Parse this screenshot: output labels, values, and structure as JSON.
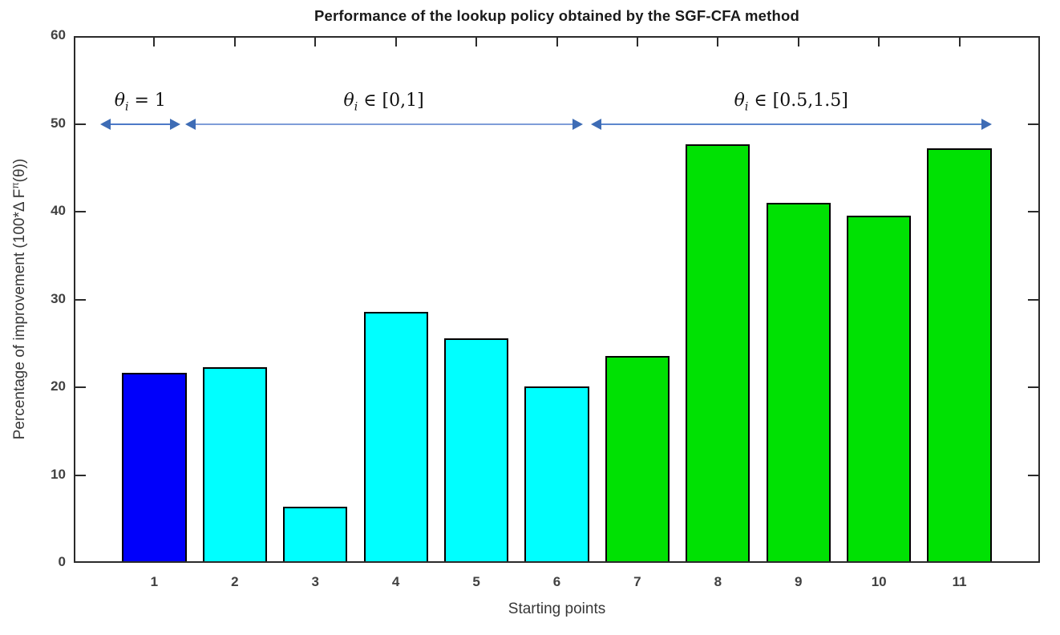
{
  "chart_data": {
    "type": "bar",
    "title": "Performance of the lookup policy obtained by the SGF-CFA method",
    "xlabel": "Starting points",
    "ylabel": {
      "prefix": "Percentage of improvement (100*Δ F",
      "superscript": "π",
      "suffix": "(θ))"
    },
    "categories": [
      "1",
      "2",
      "3",
      "4",
      "5",
      "6",
      "7",
      "8",
      "9",
      "10",
      "11"
    ],
    "values": [
      21.5,
      22.1,
      6.2,
      28.4,
      25.4,
      19.9,
      23.4,
      47.5,
      40.8,
      39.4,
      47.0
    ],
    "bar_colors": [
      "#0000fb",
      "#00ffff",
      "#00ffff",
      "#00ffff",
      "#00ffff",
      "#00ffff",
      "#00e103",
      "#00e103",
      "#00e103",
      "#00e103",
      "#00e103"
    ],
    "bar_groups": [
      {
        "label": "theta_i = 1",
        "bar_indices": [
          1
        ],
        "color": "#0000fb"
      },
      {
        "label": "theta_i in [0,1]",
        "bar_indices": [
          2,
          3,
          4,
          5,
          6
        ],
        "color": "#00ffff"
      },
      {
        "label": "theta_i in [0.5,1.5]",
        "bar_indices": [
          7,
          8,
          9,
          10,
          11
        ],
        "color": "#00e103"
      }
    ],
    "bar_edge_color": "#000000",
    "axis_color": "#2b2b2b",
    "tick_label_color": "#414141",
    "xlim": [
      0,
      12
    ],
    "ylim": [
      0,
      60
    ],
    "yticks": [
      0,
      10,
      20,
      30,
      40,
      50,
      60
    ],
    "grid": false,
    "legend": "none",
    "annotations": [
      {
        "symbol": "θ",
        "subscript": "i",
        "relation": " = 1",
        "x_start": 0.33,
        "x_end": 1.32,
        "y": 50,
        "line_color": "#4d79c7"
      },
      {
        "symbol": "θ",
        "subscript": "i",
        "relation": " ∈ [0,1]",
        "x_start": 1.38,
        "x_end": 6.32,
        "y": 50,
        "line_color": "#7f9dd8"
      },
      {
        "symbol": "θ",
        "subscript": "i",
        "relation": " ∈ [0.5,1.5]",
        "x_start": 6.42,
        "x_end": 11.4,
        "y": 50,
        "line_color": "#5c86cd"
      }
    ],
    "annotation_arrow_color": "#3e6cb5"
  }
}
